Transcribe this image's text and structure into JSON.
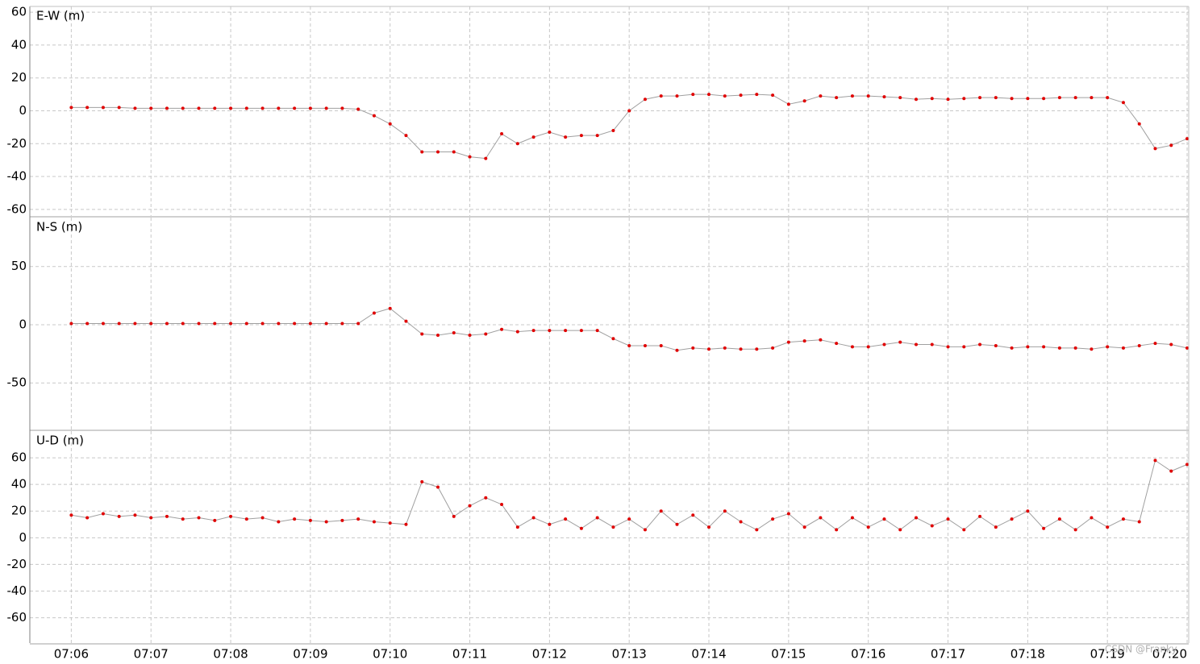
{
  "chart_data": [
    {
      "type": "line",
      "title": "E-W (m)",
      "x": [
        426,
        426.2,
        426.4,
        426.6,
        426.8,
        427,
        427.2,
        427.4,
        427.6,
        427.8,
        428,
        428.2,
        428.4,
        428.6,
        428.8,
        429,
        429.2,
        429.4,
        429.6,
        429.8,
        430,
        430.2,
        430.4,
        430.6,
        430.8,
        431,
        431.2,
        431.4,
        431.6,
        431.8,
        432,
        432.2,
        432.4,
        432.6,
        432.8,
        433,
        433.2,
        433.4,
        433.6,
        433.8,
        434,
        434.2,
        434.4,
        434.6,
        434.8,
        435,
        435.2,
        435.4,
        435.6,
        435.8,
        436,
        436.2,
        436.4,
        436.6,
        436.8,
        437,
        437.2,
        437.4,
        437.6,
        437.8,
        438,
        438.2,
        438.4,
        438.6,
        438.8,
        439,
        439.2,
        439.4,
        439.6,
        439.8,
        440
      ],
      "series": [
        {
          "color": "#e00000",
          "line_color": "#a0a0a0",
          "values": [
            2,
            2,
            2,
            2,
            1.5,
            1.5,
            1.5,
            1.5,
            1.5,
            1.5,
            1.5,
            1.5,
            1.5,
            1.5,
            1.5,
            1.5,
            1.5,
            1.5,
            1,
            -3,
            -8,
            -15,
            -25,
            -25,
            -25,
            -28,
            -29,
            -14,
            -20,
            -16,
            -13,
            -16,
            -15,
            -15,
            -12,
            0,
            7,
            9,
            9,
            10,
            10,
            9,
            9.5,
            10,
            9.5,
            4,
            6,
            9,
            8,
            9,
            9,
            8.5,
            8,
            7,
            7.5,
            7,
            7.5,
            8,
            8,
            7.5,
            7.5,
            7.5,
            8,
            8,
            8,
            8,
            5,
            -8,
            -23,
            -21,
            -17
          ]
        }
      ],
      "xlim": [
        425.48,
        440.02
      ],
      "ylim": [
        -64,
        63.5
      ],
      "yticks": [
        -60,
        -40,
        -20,
        0,
        20,
        40,
        60
      ],
      "grid": true
    },
    {
      "type": "line",
      "title": "N-S (m)",
      "x": [
        426,
        426.2,
        426.4,
        426.6,
        426.8,
        427,
        427.2,
        427.4,
        427.6,
        427.8,
        428,
        428.2,
        428.4,
        428.6,
        428.8,
        429,
        429.2,
        429.4,
        429.6,
        429.8,
        430,
        430.2,
        430.4,
        430.6,
        430.8,
        431,
        431.2,
        431.4,
        431.6,
        431.8,
        432,
        432.2,
        432.4,
        432.6,
        432.8,
        433,
        433.2,
        433.4,
        433.6,
        433.8,
        434,
        434.2,
        434.4,
        434.6,
        434.8,
        435,
        435.2,
        435.4,
        435.6,
        435.8,
        436,
        436.2,
        436.4,
        436.6,
        436.8,
        437,
        437.2,
        437.4,
        437.6,
        437.8,
        438,
        438.2,
        438.4,
        438.6,
        438.8,
        439,
        439.2,
        439.4,
        439.6,
        439.8,
        440
      ],
      "series": [
        {
          "color": "#e00000",
          "line_color": "#a0a0a0",
          "values": [
            1,
            1,
            1,
            1,
            1,
            1,
            1,
            1,
            1,
            1,
            1,
            1,
            1,
            1,
            1,
            1,
            1,
            1,
            1,
            10,
            14,
            3,
            -8,
            -9,
            -7,
            -9,
            -8,
            -4,
            -6,
            -5,
            -5,
            -5,
            -5,
            -5,
            -12,
            -18,
            -18,
            -18,
            -22,
            -20,
            -21,
            -20,
            -21,
            -21,
            -20,
            -15,
            -14,
            -13,
            -16,
            -19,
            -19,
            -17,
            -15,
            -17,
            -17,
            -19,
            -19,
            -17,
            -18,
            -20,
            -19,
            -19,
            -20,
            -20,
            -21,
            -19,
            -20,
            -18,
            -16,
            -17,
            -20
          ]
        }
      ],
      "xlim": [
        425.48,
        440.02
      ],
      "ylim": [
        -90,
        92
      ],
      "yticks": [
        -50,
        0,
        50
      ],
      "grid": true
    },
    {
      "type": "line",
      "title": "U-D (m)",
      "x": [
        426,
        426.2,
        426.4,
        426.6,
        426.8,
        427,
        427.2,
        427.4,
        427.6,
        427.8,
        428,
        428.2,
        428.4,
        428.6,
        428.8,
        429,
        429.2,
        429.4,
        429.6,
        429.8,
        430,
        430.2,
        430.4,
        430.6,
        430.8,
        431,
        431.2,
        431.4,
        431.6,
        431.8,
        432,
        432.2,
        432.4,
        432.6,
        432.8,
        433,
        433.2,
        433.4,
        433.6,
        433.8,
        434,
        434.2,
        434.4,
        434.6,
        434.8,
        435,
        435.2,
        435.4,
        435.6,
        435.8,
        436,
        436.2,
        436.4,
        436.6,
        436.8,
        437,
        437.2,
        437.4,
        437.6,
        437.8,
        438,
        438.2,
        438.4,
        438.6,
        438.8,
        439,
        439.2,
        439.4,
        439.6,
        439.8,
        440
      ],
      "series": [
        {
          "color": "#e00000",
          "line_color": "#a0a0a0",
          "values": [
            17,
            15,
            18,
            16,
            17,
            15,
            16,
            14,
            15,
            13,
            16,
            14,
            15,
            12,
            14,
            13,
            12,
            13,
            14,
            12,
            11,
            10,
            42,
            38,
            16,
            24,
            30,
            25,
            8,
            15,
            10,
            14,
            7,
            15,
            8,
            14,
            6,
            20,
            10,
            17,
            8,
            20,
            12,
            6,
            14,
            18,
            8,
            15,
            6,
            15,
            8,
            14,
            6,
            15,
            9,
            14,
            6,
            16,
            8,
            14,
            20,
            7,
            14,
            6,
            15,
            8,
            14,
            12,
            58,
            50,
            55
          ]
        }
      ],
      "xlim": [
        425.48,
        440.02
      ],
      "ylim": [
        -79,
        80
      ],
      "yticks": [
        -60,
        -40,
        -20,
        0,
        20,
        40,
        60
      ],
      "grid": true,
      "xticks": [
        {
          "value": 426,
          "label": "07:06"
        },
        {
          "value": 427,
          "label": "07:07"
        },
        {
          "value": 428,
          "label": "07:08"
        },
        {
          "value": 429,
          "label": "07:09"
        },
        {
          "value": 430,
          "label": "07:10"
        },
        {
          "value": 431,
          "label": "07:11"
        },
        {
          "value": 432,
          "label": "07:12"
        },
        {
          "value": 433,
          "label": "07:13"
        },
        {
          "value": 434,
          "label": "07:14"
        },
        {
          "value": 435,
          "label": "07:15"
        },
        {
          "value": 436,
          "label": "07:16"
        },
        {
          "value": 437,
          "label": "07:17"
        },
        {
          "value": 438,
          "label": "07:18"
        },
        {
          "value": 439,
          "label": "07:19"
        },
        {
          "value": 440,
          "label": "07:20"
        }
      ],
      "watermark": "CSDN @Franky"
    }
  ]
}
